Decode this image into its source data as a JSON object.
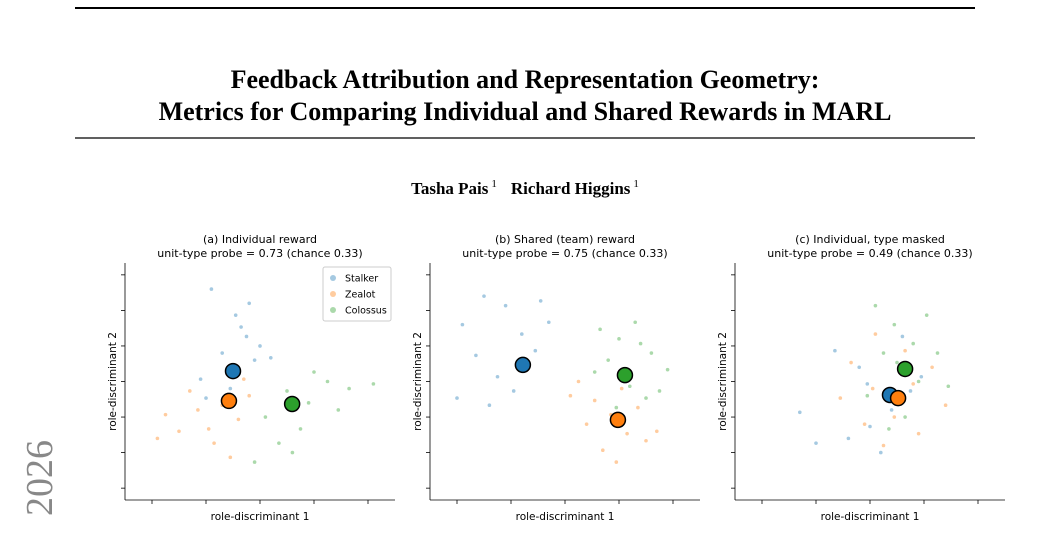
{
  "paper": {
    "title": [
      "Feedback Attribution and Representation Geometry:",
      "Metrics for Comparing Individual and Shared Rewards in MARL"
    ],
    "authors": [
      {
        "name": "Tasha Pais",
        "affiliation": "1"
      },
      {
        "name": "Richard Higgins",
        "affiliation": "1"
      }
    ],
    "margin_stamp": "2026"
  },
  "chart_data": [
    {
      "type": "scatter",
      "title": [
        "(a) Individual reward",
        "unit-type probe = 0.73  (chance 0.33)"
      ],
      "xlabel": "role-discriminant 1",
      "ylabel": "role-discriminant 2",
      "xlim": [
        0,
        10
      ],
      "ylim": [
        0,
        10
      ],
      "xticks": [
        1,
        3,
        5,
        7,
        9
      ],
      "yticks": [
        0.5,
        2,
        3.5,
        5,
        6.5,
        8,
        9.5
      ],
      "legend": "upper right",
      "series": [
        {
          "name": "Stalker",
          "color": "#1f77b4",
          "centroid": [
            4.0,
            5.44
          ],
          "x": [
            3.2,
            4.1,
            4.5,
            3.6,
            5.0,
            2.8,
            4.8,
            3.9,
            4.3,
            3.0,
            5.4,
            4.6
          ],
          "y": [
            8.9,
            7.8,
            6.9,
            6.2,
            6.5,
            5.1,
            5.9,
            4.7,
            7.3,
            4.3,
            6.0,
            8.3
          ]
        },
        {
          "name": "Zealot",
          "color": "#ff7f0e",
          "centroid": [
            3.85,
            4.18
          ],
          "x": [
            1.5,
            2.4,
            3.1,
            3.6,
            4.2,
            2.0,
            4.6,
            3.3,
            2.7,
            1.2,
            3.9,
            4.4
          ],
          "y": [
            3.6,
            4.6,
            3.0,
            4.0,
            3.4,
            2.9,
            4.4,
            2.4,
            3.8,
            2.6,
            1.8,
            5.1
          ]
        },
        {
          "name": "Colossus",
          "color": "#2ca02c",
          "centroid": [
            6.19,
            4.05
          ],
          "x": [
            5.2,
            6.0,
            6.8,
            7.5,
            8.3,
            9.2,
            5.7,
            6.5,
            7.0,
            4.8,
            7.9,
            6.2
          ],
          "y": [
            3.5,
            4.6,
            4.1,
            5.0,
            4.7,
            4.9,
            2.4,
            3.0,
            5.4,
            1.6,
            3.8,
            2.0
          ]
        }
      ]
    },
    {
      "type": "scatter",
      "title": [
        "(b) Shared (team) reward",
        "unit-type probe = 0.75  (chance 0.33)"
      ],
      "xlabel": "role-discriminant 1",
      "ylabel": "role-discriminant 2",
      "xlim": [
        0,
        10
      ],
      "ylim": [
        0,
        10
      ],
      "xticks": [
        1,
        3,
        5,
        7,
        9
      ],
      "yticks": [
        0.5,
        2,
        3.5,
        5,
        6.5,
        8,
        9.5
      ],
      "series": [
        {
          "color": "#1f77b4",
          "centroid": [
            3.44,
            5.7
          ],
          "x": [
            1.2,
            2.0,
            2.8,
            3.4,
            4.1,
            1.7,
            2.5,
            3.9,
            3.1,
            2.2,
            4.4,
            1.0
          ],
          "y": [
            7.4,
            8.6,
            8.2,
            7.0,
            8.4,
            6.1,
            5.2,
            6.3,
            4.6,
            4.0,
            7.5,
            4.3
          ]
        },
        {
          "color": "#ff7f0e",
          "centroid": [
            6.96,
            3.38
          ],
          "x": [
            5.5,
            6.1,
            6.7,
            7.3,
            8.0,
            5.8,
            6.4,
            7.7,
            8.4,
            6.9,
            5.2,
            7.1
          ],
          "y": [
            5.0,
            4.2,
            3.6,
            2.8,
            2.5,
            3.2,
            2.1,
            3.9,
            2.9,
            1.6,
            4.4,
            4.7
          ]
        },
        {
          "color": "#2ca02c",
          "centroid": [
            7.22,
            5.27
          ],
          "x": [
            6.3,
            7.0,
            7.6,
            8.2,
            8.8,
            6.6,
            7.4,
            8.0,
            6.9,
            7.8,
            8.5,
            6.1
          ],
          "y": [
            7.2,
            6.8,
            7.5,
            6.2,
            5.5,
            5.9,
            4.8,
            4.3,
            3.9,
            6.6,
            4.6,
            5.4
          ]
        }
      ]
    },
    {
      "type": "scatter",
      "title": [
        "(c) Individual, type masked",
        "unit-type probe = 0.49  (chance 0.33)"
      ],
      "xlabel": "role-discriminant 1",
      "ylabel": "role-discriminant 2",
      "xlim": [
        0,
        10
      ],
      "ylim": [
        0,
        10
      ],
      "xticks": [
        1,
        3,
        5,
        7,
        9
      ],
      "yticks": [
        0.5,
        2,
        3.5,
        5,
        6.5,
        8,
        9.5
      ],
      "series": [
        {
          "color": "#1f77b4",
          "centroid": [
            5.74,
            4.43
          ],
          "x": [
            3.0,
            4.2,
            5.0,
            5.8,
            6.5,
            4.6,
            3.7,
            5.4,
            6.9,
            2.4,
            4.9,
            6.2
          ],
          "y": [
            2.4,
            2.6,
            3.1,
            3.8,
            4.6,
            5.6,
            6.3,
            2.0,
            5.2,
            3.7,
            4.9,
            6.9
          ]
        },
        {
          "color": "#ff7f0e",
          "centroid": [
            6.04,
            4.3
          ],
          "x": [
            4.3,
            5.1,
            5.9,
            6.6,
            7.3,
            4.8,
            5.5,
            6.3,
            7.8,
            3.9,
            6.8,
            5.2
          ],
          "y": [
            5.8,
            4.7,
            3.5,
            4.9,
            5.6,
            3.2,
            2.3,
            6.3,
            4.0,
            4.3,
            2.8,
            7.0
          ]
        },
        {
          "color": "#2ca02c",
          "centroid": [
            6.3,
            5.53
          ],
          "x": [
            5.2,
            5.9,
            6.6,
            7.1,
            6.0,
            5.5,
            6.8,
            7.5,
            4.9,
            6.3,
            7.9,
            5.7
          ],
          "y": [
            8.2,
            7.4,
            6.6,
            7.8,
            5.8,
            6.2,
            5.0,
            6.2,
            4.4,
            3.5,
            4.8,
            3.0
          ]
        }
      ]
    }
  ]
}
